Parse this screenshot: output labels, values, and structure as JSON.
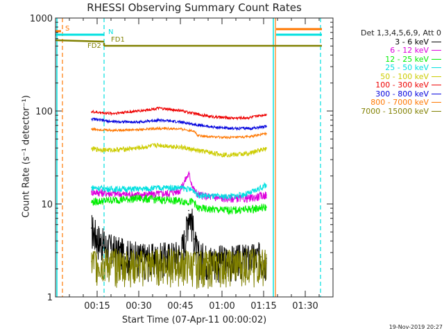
{
  "chart_data": {
    "type": "line",
    "title": "RHESSI Observing Summary Count Rates",
    "xlabel": "Start Time (07-Apr-11 00:00:02)",
    "ylabel": "Count Rate (s⁻¹ detector⁻¹)",
    "yscale": "log",
    "ylim": [
      1,
      1000
    ],
    "xlim_minutes": [
      0,
      100
    ],
    "x_ticks": [
      "00:15",
      "00:30",
      "00:45",
      "01:00",
      "01:15",
      "01:30"
    ],
    "x_tick_minutes": [
      15,
      30,
      45,
      60,
      75,
      90
    ],
    "y_ticks": [
      "1",
      "10",
      "100",
      "1000"
    ],
    "y_tick_values": [
      1,
      10,
      100,
      1000
    ],
    "legend_title": "Det 1,3,4,5,6,9, Att 0",
    "legend_position": "right",
    "series": [
      {
        "name": "3 - 6 keV",
        "color": "#000000",
        "x": [
          13,
          15,
          17,
          20,
          25,
          30,
          35,
          40,
          45,
          47,
          48,
          49,
          50,
          51,
          52,
          55,
          60,
          65,
          70,
          74,
          76
        ],
        "values": [
          5.5,
          4.5,
          3.8,
          3.3,
          2.9,
          2.7,
          2.6,
          2.7,
          2.9,
          4.5,
          8.5,
          7.0,
          4.2,
          3.0,
          2.7,
          2.6,
          2.5,
          2.5,
          2.6,
          2.7,
          2.6
        ]
      },
      {
        "name": "6 - 12 keV",
        "color": "#dd00dd",
        "x": [
          13,
          20,
          30,
          40,
          45,
          48,
          49,
          50,
          51,
          52,
          55,
          60,
          65,
          70,
          73,
          76
        ],
        "values": [
          13.5,
          13,
          12.5,
          13,
          14,
          21,
          17,
          14,
          13,
          12.5,
          12,
          11.5,
          11.5,
          11.5,
          12,
          12.5
        ]
      },
      {
        "name": "12 - 25 keV",
        "color": "#00ee00",
        "x": [
          13,
          20,
          30,
          40,
          50,
          51,
          55,
          60,
          65,
          70,
          76
        ],
        "values": [
          10.5,
          11,
          11.5,
          11,
          10.5,
          9.0,
          8.8,
          8.6,
          8.6,
          8.8,
          9.2
        ]
      },
      {
        "name": "25 - 50 keV",
        "color": "#00e0e0",
        "x": [
          13,
          20,
          30,
          40,
          45,
          50,
          51,
          55,
          60,
          65,
          70,
          76
        ],
        "values": [
          15,
          14.5,
          14.5,
          15,
          15,
          14,
          12.5,
          12.2,
          12,
          12.2,
          13,
          16
        ]
      },
      {
        "name": "50 - 100 keV",
        "color": "#cccc00",
        "x": [
          13,
          20,
          30,
          37,
          45,
          50,
          55,
          60,
          65,
          70,
          76
        ],
        "values": [
          39,
          38,
          40,
          43,
          41,
          38,
          36,
          34,
          34,
          35,
          40
        ]
      },
      {
        "name": "100 - 300 keV",
        "color": "#ee0000",
        "x": [
          13,
          20,
          30,
          37,
          45,
          50,
          55,
          60,
          65,
          70,
          76
        ],
        "values": [
          98,
          94,
          100,
          107,
          101,
          94,
          88,
          85,
          84,
          85,
          92
        ]
      },
      {
        "name": "300 - 800 keV",
        "color": "#0000dd",
        "x": [
          13,
          20,
          30,
          37,
          45,
          50,
          55,
          60,
          65,
          70,
          76
        ],
        "values": [
          82,
          77,
          76,
          80,
          76,
          72,
          68,
          66,
          65,
          65,
          68
        ]
      },
      {
        "name": "800 - 7000 keV",
        "color": "#ff7700",
        "x": [
          13,
          20,
          30,
          37,
          45,
          50,
          51,
          55,
          60,
          65,
          70,
          76
        ],
        "values": [
          64,
          62,
          63,
          65,
          64,
          61,
          55,
          53,
          52,
          52,
          53,
          57
        ]
      },
      {
        "name": "7000 - 15000 keV",
        "color": "#808000",
        "x": [
          13,
          20,
          30,
          40,
          50,
          60,
          70,
          76
        ],
        "values": [
          2.4,
          2.3,
          2.2,
          2.3,
          2.2,
          2.2,
          2.3,
          2.3
        ]
      }
    ],
    "annotations": [
      {
        "text": "S",
        "color": "#ff7700"
      },
      {
        "text": "N",
        "color": "#00e0e0"
      },
      {
        "text": "FD1",
        "color": "#808000"
      },
      {
        "text": "FD2",
        "color": "#808000"
      }
    ],
    "footer": "19-Nov-2019 20:27"
  }
}
